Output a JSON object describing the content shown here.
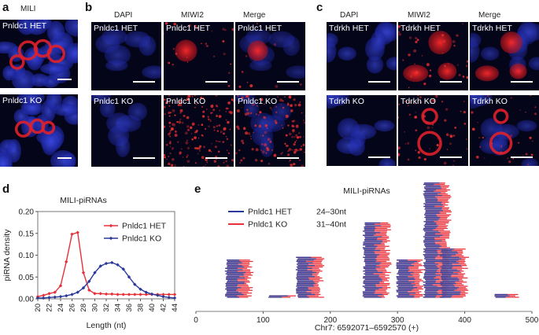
{
  "panels": {
    "a": {
      "letter": "a",
      "column_title": "MILI",
      "rows": [
        "Pnldc1 HET",
        "Pnldc1 KO"
      ]
    },
    "b": {
      "letter": "b",
      "column_titles": [
        "DAPI",
        "MIWI2",
        "Merge"
      ],
      "rows": [
        "Pnldc1 HET",
        "Pnldc1 KO"
      ]
    },
    "c": {
      "letter": "c",
      "column_titles": [
        "DAPI",
        "MIWI2",
        "Merge"
      ],
      "rows": [
        "Tdrkh HET",
        "Tdrkh KO"
      ]
    }
  },
  "colors": {
    "dapi": "#2a37c8",
    "signal": "#e8202a",
    "het": "#e8303a",
    "ko": "#2a3a9a"
  },
  "chart_data": [
    {
      "panel": "d",
      "type": "line",
      "title": "MILI-piRNAs",
      "xlabel": "Length (nt)",
      "ylabel": "piRNA density",
      "xlim": [
        20,
        44
      ],
      "ylim": [
        0,
        0.2
      ],
      "xticks": [
        "20",
        "22",
        "24",
        "26",
        "28",
        "30",
        "32",
        "34",
        "36",
        "38",
        "40",
        "42",
        "44"
      ],
      "yticks": [
        "0.00",
        "0.05",
        "0.10",
        "0.15",
        "0.20"
      ],
      "legend_position": "top-right",
      "series": [
        {
          "name": "Pnldc1 HET",
          "color": "#e8303a",
          "x": [
            20,
            21,
            22,
            23,
            24,
            25,
            26,
            27,
            28,
            29,
            30,
            31,
            32,
            33,
            34,
            35,
            36,
            37,
            38,
            39,
            40,
            41,
            42,
            43,
            44
          ],
          "values": [
            0.005,
            0.008,
            0.012,
            0.015,
            0.03,
            0.085,
            0.148,
            0.152,
            0.06,
            0.02,
            0.012,
            0.012,
            0.011,
            0.011,
            0.01,
            0.01,
            0.01,
            0.01,
            0.01,
            0.01,
            0.01,
            0.01,
            0.01,
            0.01,
            0.01
          ]
        },
        {
          "name": "Pnldc1 KO",
          "color": "#2a3a9a",
          "x": [
            20,
            21,
            22,
            23,
            24,
            25,
            26,
            27,
            28,
            29,
            30,
            31,
            32,
            33,
            34,
            35,
            36,
            37,
            38,
            39,
            40,
            41,
            42,
            43,
            44
          ],
          "values": [
            0.002,
            0.002,
            0.003,
            0.004,
            0.005,
            0.007,
            0.01,
            0.015,
            0.025,
            0.04,
            0.06,
            0.075,
            0.081,
            0.083,
            0.078,
            0.068,
            0.05,
            0.033,
            0.022,
            0.015,
            0.011,
            0.008,
            0.005,
            0.003,
            0.002
          ]
        }
      ]
    },
    {
      "panel": "e",
      "type": "bar",
      "title": "MILI-piRNAs",
      "xlabel": "Chr7: 6592071–6592570 (+)",
      "xlim": [
        0,
        500
      ],
      "xticks": [
        "0",
        "100",
        "200",
        "300",
        "400",
        "500"
      ],
      "legend_position": "top-left",
      "series": [
        {
          "name": "Pnldc1 HET",
          "range_label": "24–30nt",
          "color": "#2a3a9a"
        },
        {
          "name": "Pnldc1 KO",
          "range_label": "31–40nt",
          "color": "#e8303a"
        }
      ],
      "clusters": [
        {
          "start": 45,
          "reads": 28
        },
        {
          "start": 108,
          "reads": 2
        },
        {
          "start": 150,
          "reads": 30
        },
        {
          "start": 250,
          "reads": 55
        },
        {
          "start": 300,
          "reads": 28
        },
        {
          "start": 340,
          "reads": 85
        },
        {
          "start": 365,
          "reads": 36
        },
        {
          "start": 445,
          "reads": 3
        }
      ]
    }
  ],
  "labels": {
    "d": "d",
    "e": "e"
  }
}
